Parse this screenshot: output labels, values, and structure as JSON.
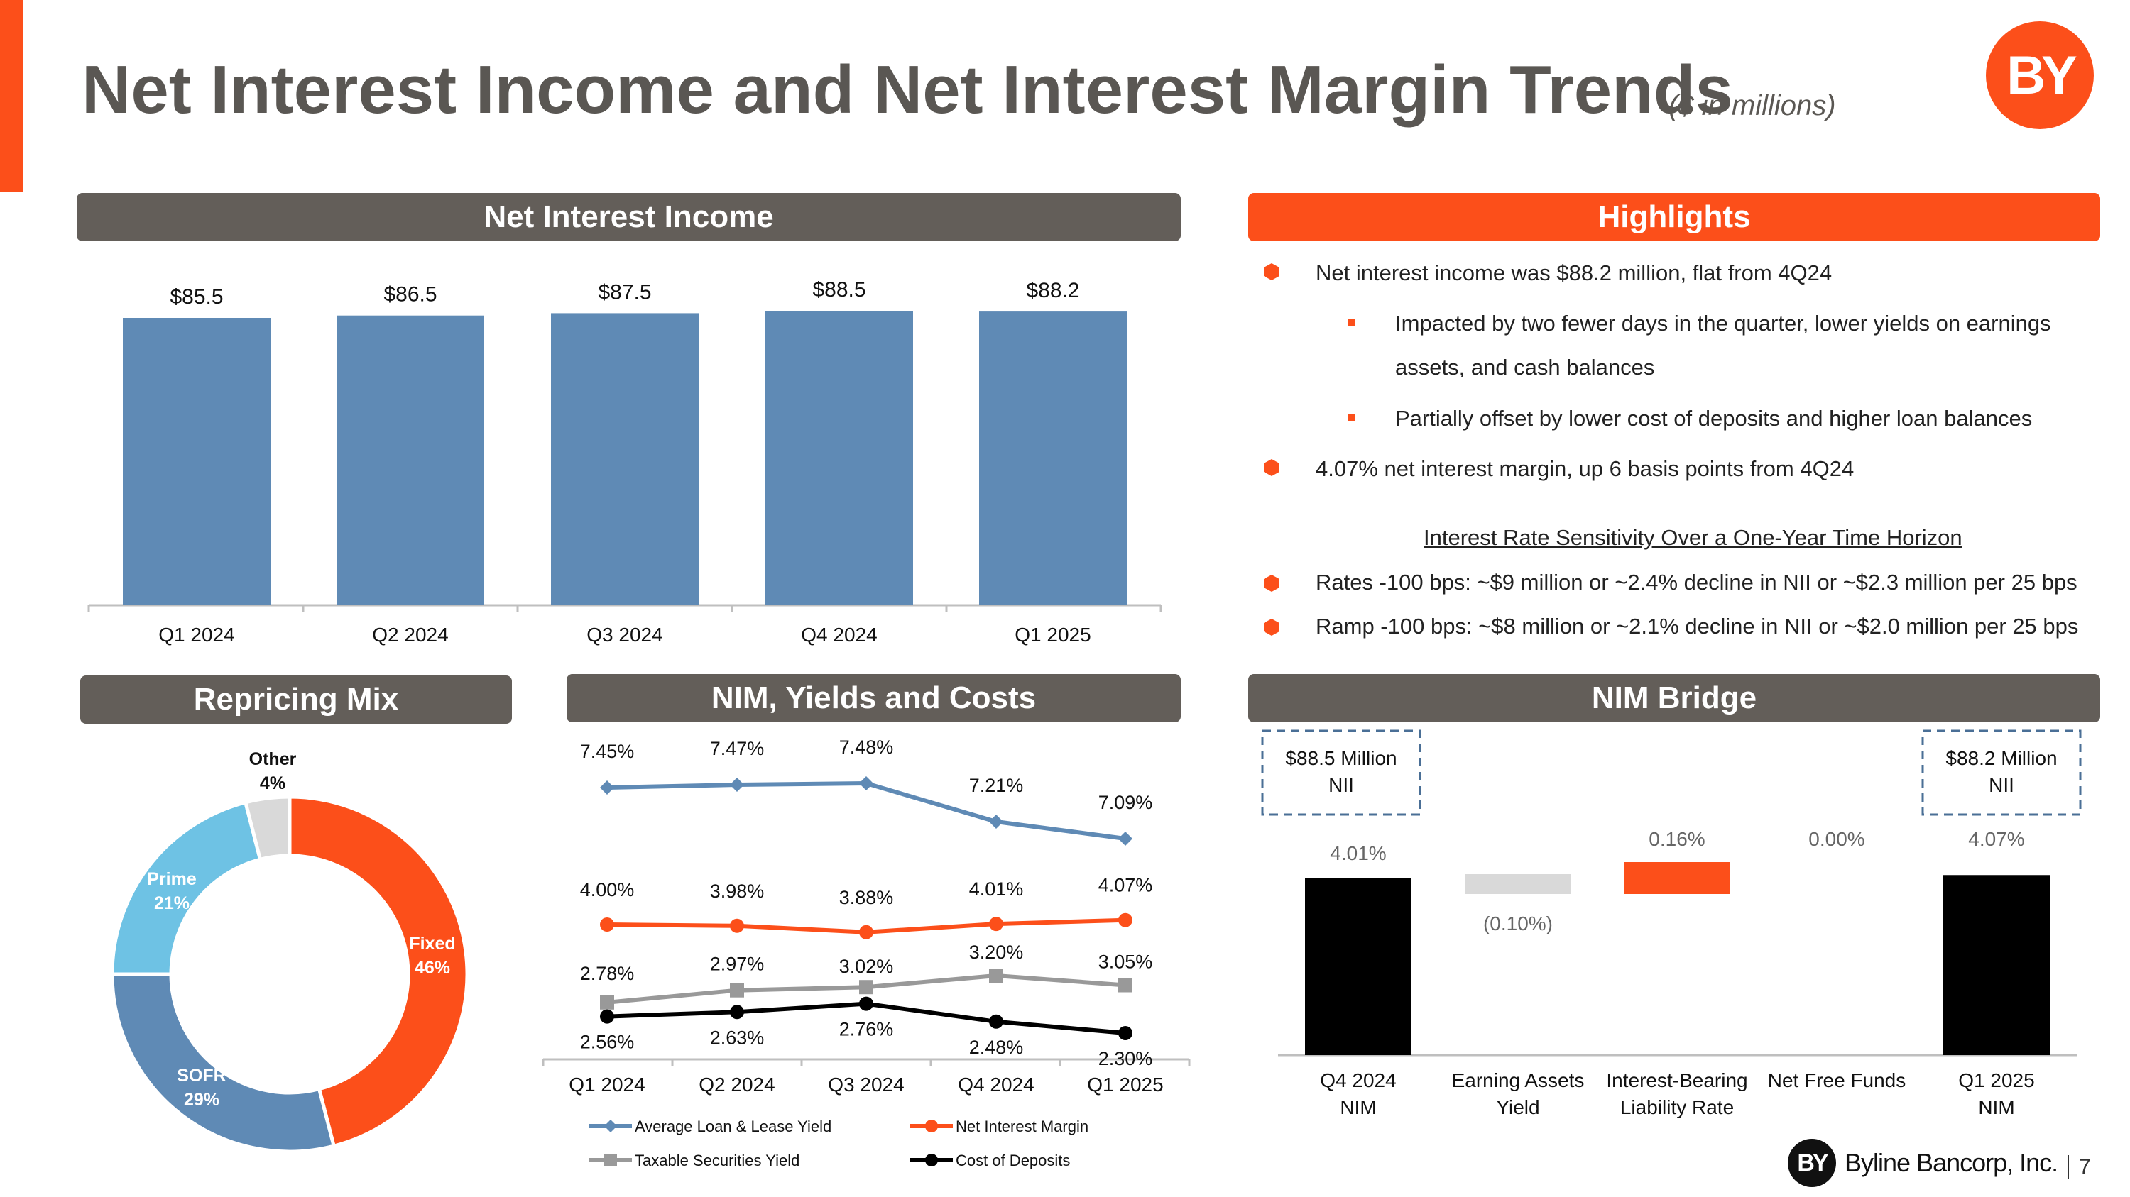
{
  "title": "Net Interest Income and Net Interest Margin Trends",
  "subtitle": "($ in millions)",
  "logo_text": "BY",
  "colors": {
    "accent": "#fc4f1a",
    "header_gray": "#635e59",
    "bar_blue": "#5f8ab5",
    "light_blue": "#6ec2e4",
    "gray": "#999999",
    "light_gray": "#d9d9d9"
  },
  "sections": {
    "nii": "Net Interest Income",
    "highlights": "Highlights",
    "repricing": "Repricing Mix",
    "nim_yields": "NIM, Yields and Costs",
    "nim_bridge": "NIM Bridge"
  },
  "highlights": {
    "bullets": [
      "Net interest income was $88.2 million, flat from 4Q24",
      "4.07% net interest margin, up 6 basis points from 4Q24"
    ],
    "sub_bullets": [
      "Impacted by two fewer days in the quarter, lower yields on earnings",
      "assets, and cash balances",
      "Partially offset by lower cost of deposits and higher loan balances"
    ],
    "sensitivity_title": "Interest Rate Sensitivity Over a One-Year Time Horizon",
    "sensitivity": [
      "Rates -100 bps: ~$9 million or ~2.4% decline in NII or ~$2.3 million per 25 bps",
      "Ramp -100 bps: ~$8 million or ~2.1% decline in NII or ~$2.0 million per 25 bps"
    ]
  },
  "chart_data": [
    {
      "id": "nii",
      "type": "bar",
      "title": "Net Interest Income",
      "categories": [
        "Q1 2024",
        "Q2 2024",
        "Q3 2024",
        "Q4 2024",
        "Q1 2025"
      ],
      "values": [
        85.5,
        86.5,
        87.5,
        88.5,
        88.2
      ],
      "labels": [
        "$85.5",
        "$86.5",
        "$87.5",
        "$88.5",
        "$88.2"
      ],
      "ylim": [
        0,
        95
      ]
    },
    {
      "id": "repricing",
      "type": "pie",
      "title": "Repricing Mix",
      "slices": [
        {
          "name": "Fixed",
          "pct": "46%",
          "value": 46,
          "color": "#fc4f1a"
        },
        {
          "name": "SOFR",
          "pct": "29%",
          "value": 29,
          "color": "#5f8ab5"
        },
        {
          "name": "Prime",
          "pct": "21%",
          "value": 21,
          "color": "#6ec2e4"
        },
        {
          "name": "Other",
          "pct": "4%",
          "value": 4,
          "color": "#d9d9d9"
        }
      ]
    },
    {
      "id": "nim_yields",
      "type": "line",
      "title": "NIM, Yields and Costs",
      "categories": [
        "Q1 2024",
        "Q2 2024",
        "Q3 2024",
        "Q4 2024",
        "Q1 2025"
      ],
      "series": [
        {
          "name": "Average Loan & Lease Yield",
          "values": [
            7.45,
            7.47,
            7.48,
            7.21,
            7.09
          ],
          "labels": [
            "7.45%",
            "7.47%",
            "7.48%",
            "7.21%",
            "7.09%"
          ],
          "color": "#5f8ab5",
          "marker": "diamond"
        },
        {
          "name": "Net Interest Margin",
          "values": [
            4.0,
            3.98,
            3.88,
            4.01,
            4.07
          ],
          "labels": [
            "4.00%",
            "3.98%",
            "3.88%",
            "4.01%",
            "4.07%"
          ],
          "color": "#fc4f1a",
          "marker": "circle"
        },
        {
          "name": "Taxable Securities Yield",
          "values": [
            2.78,
            2.97,
            3.02,
            3.2,
            3.05
          ],
          "labels": [
            "2.78%",
            "2.97%",
            "3.02%",
            "3.20%",
            "3.05%"
          ],
          "color": "#999999",
          "marker": "square"
        },
        {
          "name": "Cost of Deposits",
          "values": [
            2.56,
            2.63,
            2.76,
            2.48,
            2.3
          ],
          "labels": [
            "2.56%",
            "2.63%",
            "2.76%",
            "2.48%",
            "2.30%"
          ],
          "color": "#000000",
          "marker": "circle"
        }
      ]
    },
    {
      "id": "nim_bridge",
      "type": "bar",
      "title": "NIM Bridge",
      "categories": [
        "Q4 2024\nNIM",
        "Earning Assets\nYield",
        "Interest-Bearing\nLiability Rate",
        "Net Free Funds",
        "Q1 2025\nNIM"
      ],
      "values": [
        4.01,
        -0.1,
        0.16,
        0.0,
        4.07
      ],
      "labels": [
        "4.01%",
        "(0.10%)",
        "0.16%",
        "0.00%",
        "4.07%"
      ],
      "callouts": [
        "$88.5 Million\nNII",
        "$88.2 Million\nNII"
      ]
    }
  ],
  "footer": {
    "company": "Byline Bancorp, Inc.",
    "mark": "BY",
    "page": "7"
  }
}
